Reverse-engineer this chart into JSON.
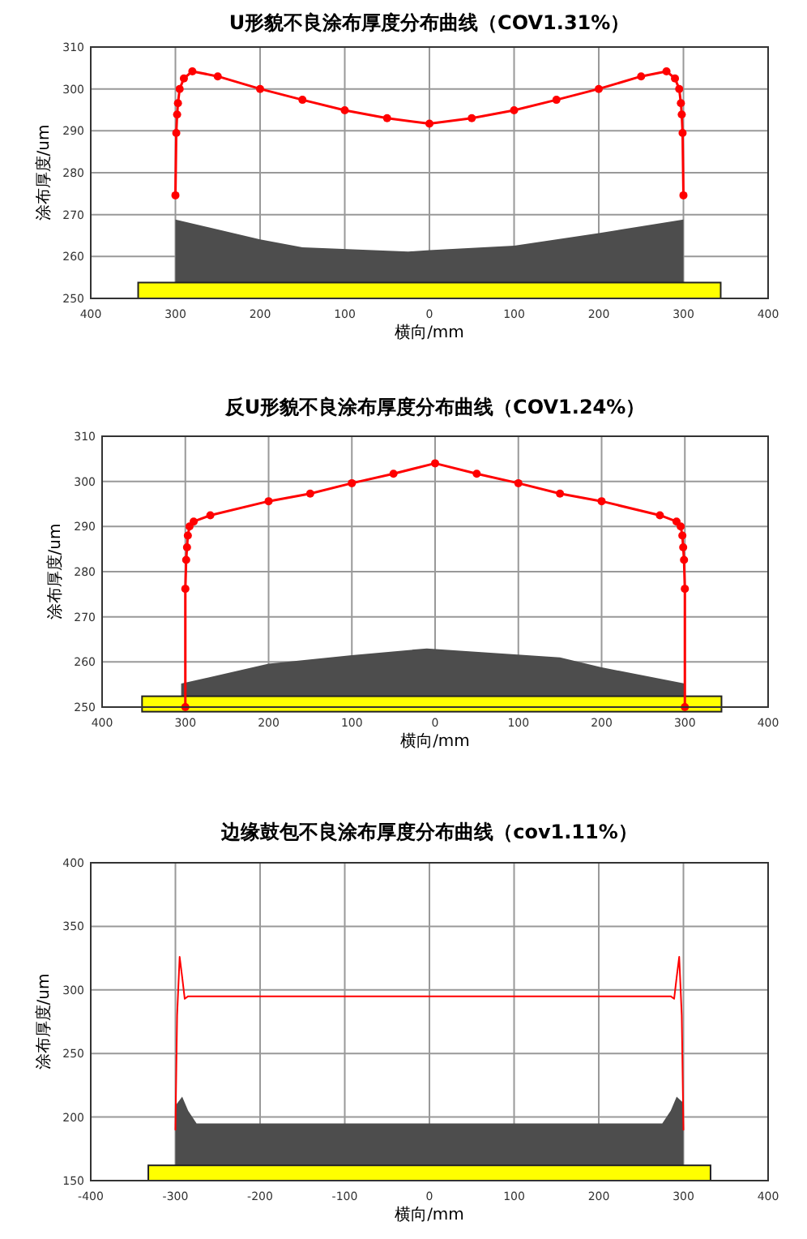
{
  "chart_data": [
    {
      "type": "line",
      "title": "U形貌不良涂布厚度分布曲线（COV1.31%）",
      "xlabel": "横向/mm",
      "ylabel": "涂布厚度/um",
      "xlim": [
        -400,
        400
      ],
      "ylim": [
        250,
        310
      ],
      "xticks": [
        {
          "value": -400,
          "label": "400"
        },
        {
          "value": -300,
          "label": "300"
        },
        {
          "value": -200,
          "label": "200"
        },
        {
          "value": -100,
          "label": "100"
        },
        0,
        100,
        200,
        300,
        400
      ],
      "yticks": [
        250,
        260,
        270,
        280,
        290,
        300,
        310
      ],
      "grid": true,
      "series": [
        {
          "type": "area",
          "color": "#4d4d4d",
          "x": [
            -300,
            -200,
            -150,
            -25,
            0,
            100,
            200,
            300
          ],
          "values": [
            268.8,
            264.1,
            262.2,
            261.2,
            261.5,
            262.6,
            265.6,
            268.8
          ]
        },
        {
          "type": "line",
          "color": "#ff0000",
          "marker": "circle",
          "x": [
            -300,
            -299,
            -298,
            -297,
            -295,
            -290,
            -280,
            -250,
            -200,
            -150,
            -100,
            -50,
            0,
            50,
            100,
            150,
            200,
            250,
            280,
            290,
            295,
            297,
            298,
            299,
            300
          ],
          "values": [
            274.6,
            289.5,
            293.9,
            296.6,
            300,
            302.5,
            304.2,
            303,
            300,
            297.4,
            294.9,
            293,
            291.7,
            293,
            294.9,
            297.4,
            300,
            303,
            304.2,
            302.5,
            300,
            296.6,
            293.9,
            289.5,
            274.6
          ]
        }
      ]
    },
    {
      "type": "line",
      "title": "反U形貌不良涂布厚度分布曲线（COV1.24%）",
      "xlabel": "横向/mm",
      "ylabel": "涂布厚度/um",
      "xlim": [
        -400,
        400
      ],
      "ylim": [
        250,
        310
      ],
      "xticks": [
        {
          "value": -400,
          "label": "400"
        },
        {
          "value": -300,
          "label": "300"
        },
        {
          "value": -200,
          "label": "200"
        },
        {
          "value": -100,
          "label": "100"
        },
        0,
        100,
        200,
        300,
        400
      ],
      "yticks": [
        250,
        260,
        270,
        280,
        290,
        300,
        310
      ],
      "grid": true,
      "series": [
        {
          "type": "area",
          "color": "#4d4d4d",
          "x": [
            -305,
            -200,
            -100,
            -10,
            150,
            200,
            300
          ],
          "values": [
            255.2,
            259.6,
            261.5,
            263,
            261,
            258.8,
            255.2
          ]
        },
        {
          "type": "line",
          "color": "#ff0000",
          "marker": "circle",
          "x": [
            -300,
            -300,
            -299,
            -298,
            -297,
            -295,
            -290,
            -270,
            -200,
            -150,
            -100,
            -50,
            0,
            50,
            100,
            150,
            200,
            270,
            290,
            295,
            297,
            298,
            299,
            300,
            300
          ],
          "values": [
            250,
            276.2,
            282.6,
            285.4,
            288,
            290,
            291.1,
            292.5,
            295.6,
            297.3,
            299.6,
            301.7,
            304,
            301.7,
            299.6,
            297.3,
            295.6,
            292.5,
            291.1,
            290,
            288,
            285.4,
            282.6,
            276.2,
            250
          ]
        }
      ]
    },
    {
      "type": "line",
      "title": "边缘鼓包不良涂布厚度分布曲线（cov1.11%）",
      "xlabel": "横向/mm",
      "ylabel": "涂布厚度/um",
      "xlim": [
        -400,
        400
      ],
      "ylim": [
        150,
        400
      ],
      "xticks": [
        -400,
        -300,
        -200,
        -100,
        0,
        100,
        200,
        300,
        400
      ],
      "yticks": [
        150,
        200,
        250,
        300,
        350,
        400
      ],
      "grid": true,
      "series": [
        {
          "type": "area",
          "color": "#4d4d4d",
          "x": [
            -300,
            -292,
            -285,
            -275,
            275,
            285,
            292,
            300
          ],
          "values": [
            209,
            216,
            205,
            195,
            195,
            205,
            216,
            211
          ]
        },
        {
          "type": "line",
          "color": "#ff0000",
          "marker": "none",
          "x": [
            -300,
            -298,
            -295,
            -292,
            -289,
            -285,
            285,
            289,
            292,
            295,
            298,
            300
          ],
          "values": [
            190,
            280,
            326,
            310,
            293,
            295,
            295,
            293,
            310,
            326,
            280,
            190
          ]
        }
      ]
    }
  ]
}
